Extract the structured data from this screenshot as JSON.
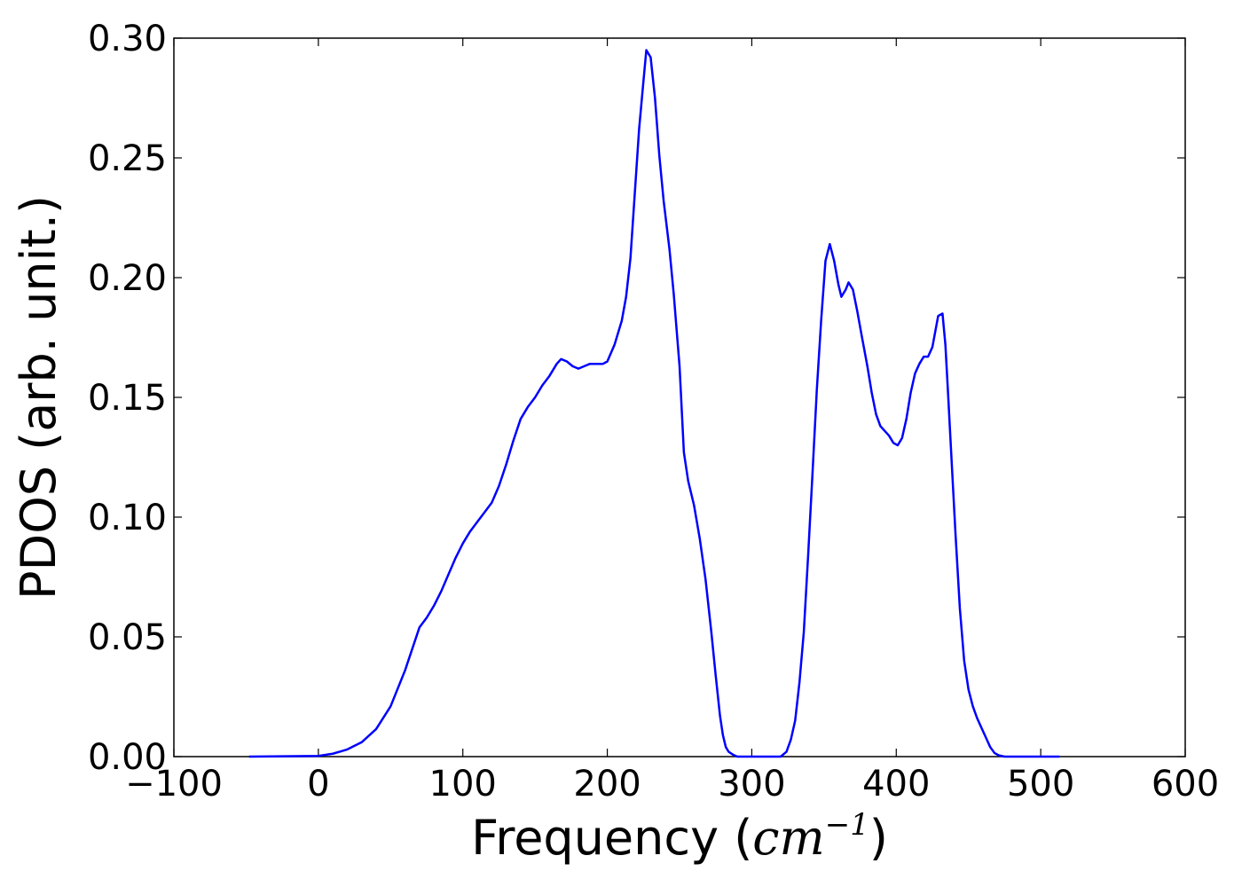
{
  "chart_data": {
    "type": "line",
    "xlabel": "Frequency (",
    "xlabel_math": "cm",
    "xlabel_exp": "−1",
    "xlabel_close": ")",
    "ylabel": "PDOS (arb. unit.)",
    "xlim": [
      -100,
      600
    ],
    "ylim": [
      0,
      0.3
    ],
    "xticks": [
      -100,
      0,
      100,
      200,
      300,
      400,
      500,
      600
    ],
    "xtick_labels": [
      "−100",
      "0",
      "100",
      "200",
      "300",
      "400",
      "500",
      "600"
    ],
    "yticks": [
      0,
      0.05,
      0.1,
      0.15,
      0.2,
      0.25,
      0.3
    ],
    "ytick_labels": [
      "0.00",
      "0.05",
      "0.10",
      "0.15",
      "0.20",
      "0.25",
      "0.30"
    ],
    "grid": false,
    "line_color": "#0000ff",
    "series": [
      {
        "x": [
          -48,
          0,
          10,
          20,
          30,
          40,
          50,
          60,
          70,
          75,
          80,
          85,
          90,
          95,
          100,
          105,
          110,
          115,
          120,
          125,
          130,
          135,
          140,
          145,
          150,
          155,
          160,
          165,
          168,
          172,
          176,
          180,
          184,
          188,
          192,
          197,
          200,
          205,
          210,
          213,
          216,
          219,
          222,
          225,
          227,
          230,
          233,
          236,
          239,
          243,
          246,
          250,
          253,
          256,
          260,
          264,
          268,
          272,
          275,
          278,
          280,
          282,
          284,
          287,
          290,
          300,
          310,
          320,
          324,
          327,
          330,
          333,
          336,
          339,
          342,
          345,
          348,
          351,
          354,
          357,
          360,
          362,
          365,
          367,
          370,
          373,
          376,
          380,
          383,
          386,
          389,
          392,
          395,
          398,
          401,
          404,
          407,
          410,
          413,
          416,
          419,
          422,
          425,
          429,
          432,
          434,
          436,
          438,
          441,
          444,
          447,
          450,
          453,
          456,
          459,
          462,
          465,
          468,
          471,
          475,
          480,
          490,
          500,
          513
        ],
        "y": [
          0,
          0.0003,
          0.0012,
          0.003,
          0.006,
          0.0115,
          0.021,
          0.036,
          0.054,
          0.058,
          0.063,
          0.069,
          0.076,
          0.083,
          0.089,
          0.094,
          0.098,
          0.102,
          0.106,
          0.113,
          0.122,
          0.132,
          0.141,
          0.146,
          0.15,
          0.155,
          0.159,
          0.164,
          0.166,
          0.165,
          0.163,
          0.162,
          0.163,
          0.164,
          0.164,
          0.164,
          0.165,
          0.172,
          0.182,
          0.192,
          0.208,
          0.235,
          0.262,
          0.282,
          0.295,
          0.292,
          0.275,
          0.251,
          0.232,
          0.212,
          0.193,
          0.163,
          0.127,
          0.115,
          0.105,
          0.091,
          0.074,
          0.052,
          0.034,
          0.017,
          0.009,
          0.004,
          0.002,
          0.0008,
          0,
          0,
          0,
          0,
          0.002,
          0.007,
          0.015,
          0.031,
          0.052,
          0.084,
          0.118,
          0.153,
          0.182,
          0.207,
          0.214,
          0.207,
          0.197,
          0.192,
          0.195,
          0.198,
          0.195,
          0.186,
          0.176,
          0.163,
          0.152,
          0.143,
          0.138,
          0.136,
          0.134,
          0.131,
          0.13,
          0.133,
          0.141,
          0.152,
          0.16,
          0.164,
          0.167,
          0.167,
          0.171,
          0.184,
          0.185,
          0.172,
          0.15,
          0.127,
          0.093,
          0.062,
          0.04,
          0.028,
          0.021,
          0.016,
          0.012,
          0.008,
          0.004,
          0.0015,
          0.0005,
          0,
          0,
          0,
          0,
          0
        ]
      }
    ]
  }
}
